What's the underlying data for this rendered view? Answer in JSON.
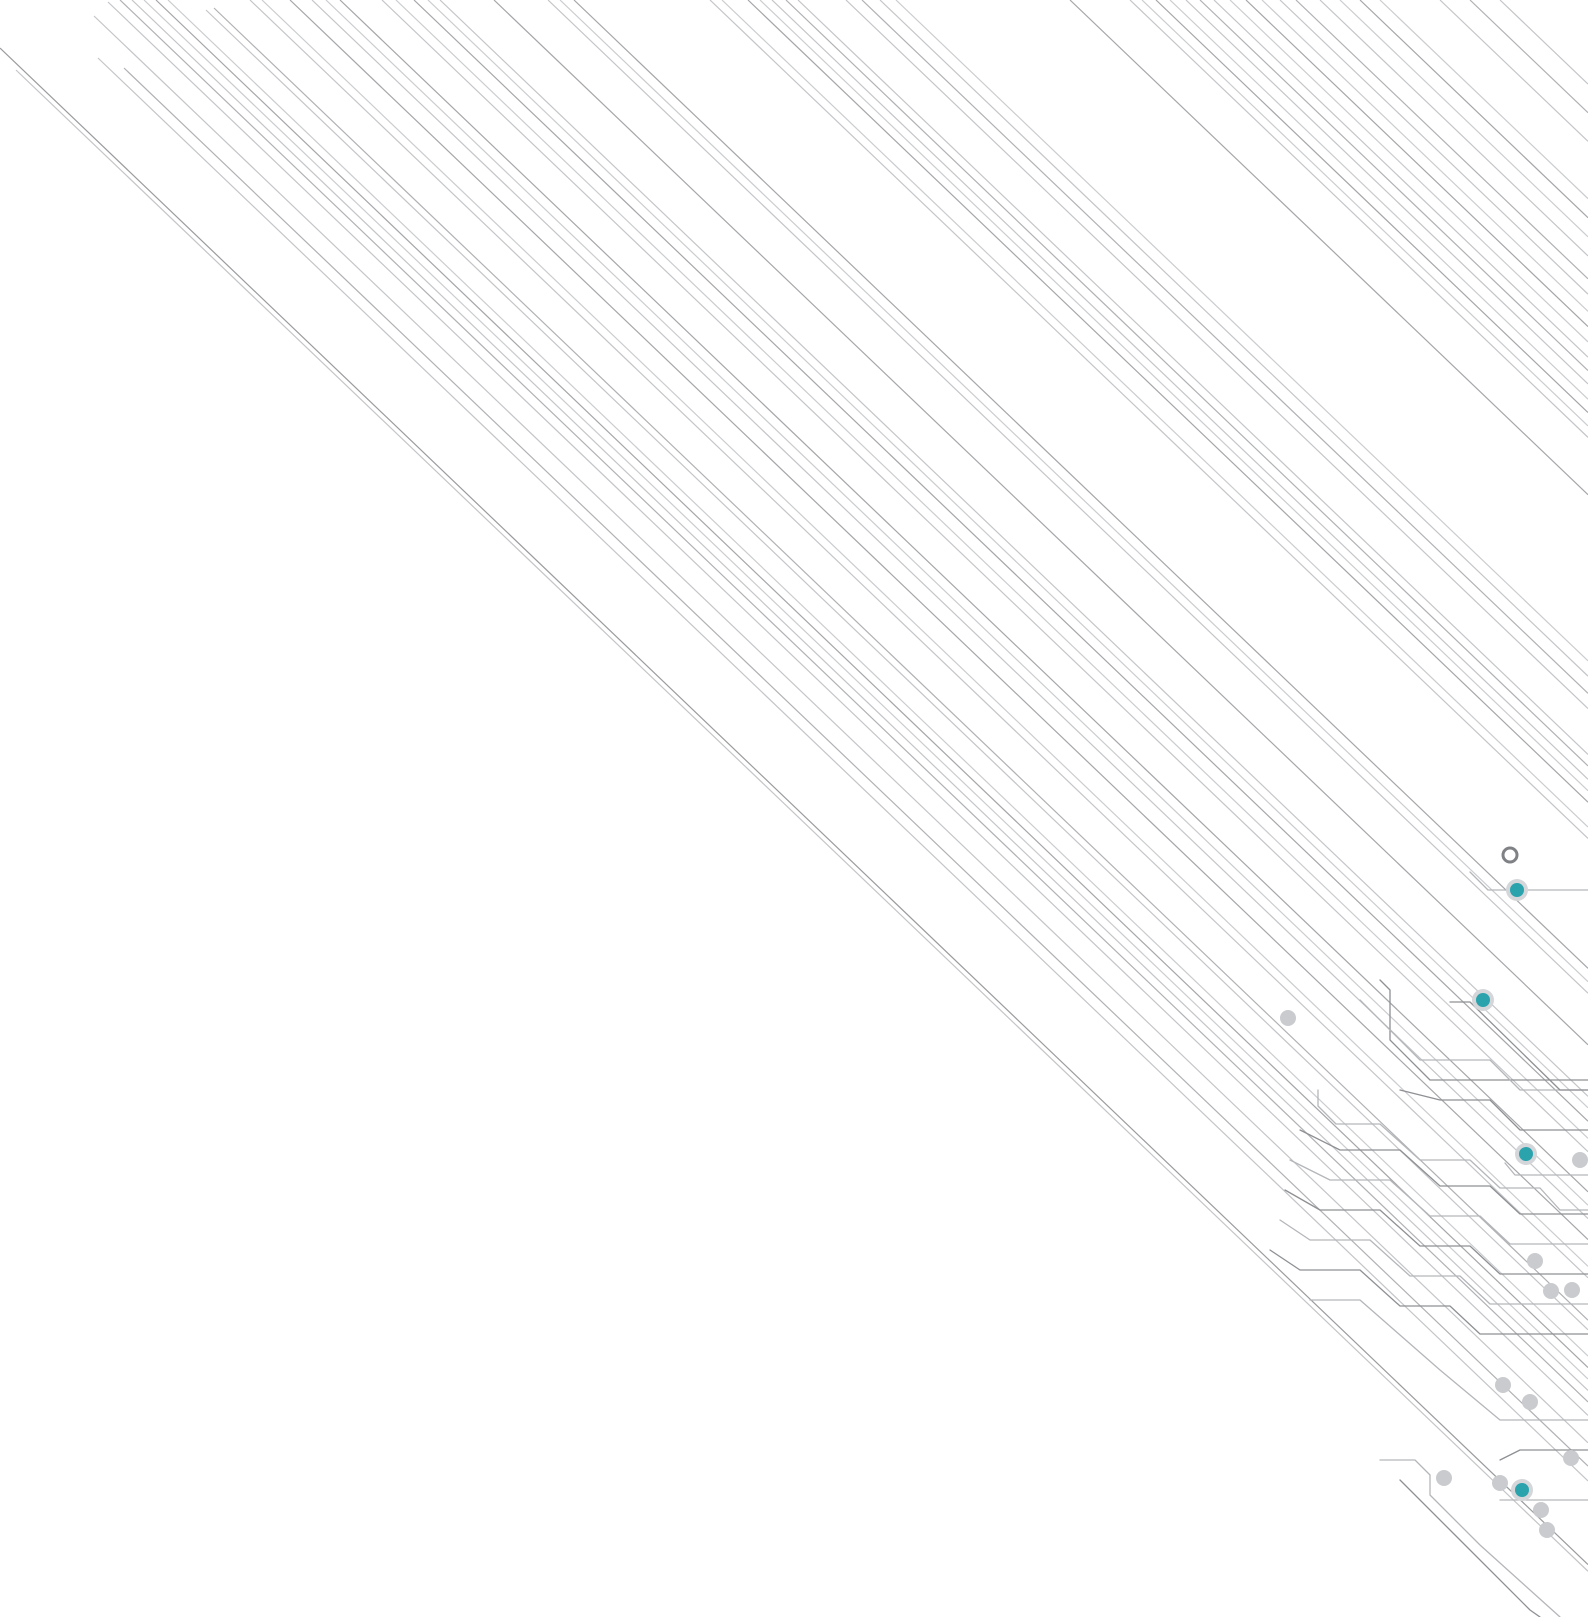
{
  "artwork": {
    "subject": "circuit-board-traces",
    "colors": {
      "background": "#ffffff",
      "trace": "#8e9094",
      "trace_light": "#b4b6ba",
      "node_accent": "#2aa3ad",
      "node_accent_ring": "#d4d6d9",
      "node_gray": "#c9cbce",
      "node_outline": "#7f8185"
    }
  }
}
